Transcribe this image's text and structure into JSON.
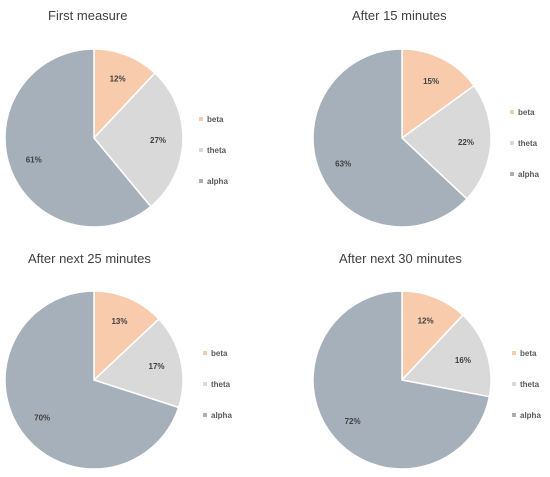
{
  "colors": {
    "beta": "#f8cbad",
    "theta": "#d9d9d9",
    "alpha": "#a5b0ba",
    "stroke": "#ffffff"
  },
  "chart_data": [
    {
      "type": "pie",
      "title": "First measure",
      "categories": [
        "beta",
        "theta",
        "alpha"
      ],
      "values": [
        12,
        27,
        61
      ],
      "labels": [
        "12%",
        "27%",
        "61%"
      ],
      "legend": "right"
    },
    {
      "type": "pie",
      "title": "After 15 minutes",
      "categories": [
        "beta",
        "theta",
        "alpha"
      ],
      "values": [
        15,
        22,
        63
      ],
      "labels": [
        "15%",
        "22%",
        "63%"
      ],
      "legend": "right"
    },
    {
      "type": "pie",
      "title": "After next 25 minutes",
      "categories": [
        "beta",
        "theta",
        "alpha"
      ],
      "values": [
        13,
        17,
        70
      ],
      "labels": [
        "13%",
        "17%",
        "70%"
      ],
      "legend": "right"
    },
    {
      "type": "pie",
      "title": "After next 30 minutes",
      "categories": [
        "beta",
        "theta",
        "alpha"
      ],
      "values": [
        12,
        16,
        72
      ],
      "labels": [
        "12%",
        "16%",
        "72%"
      ],
      "legend": "right"
    }
  ]
}
